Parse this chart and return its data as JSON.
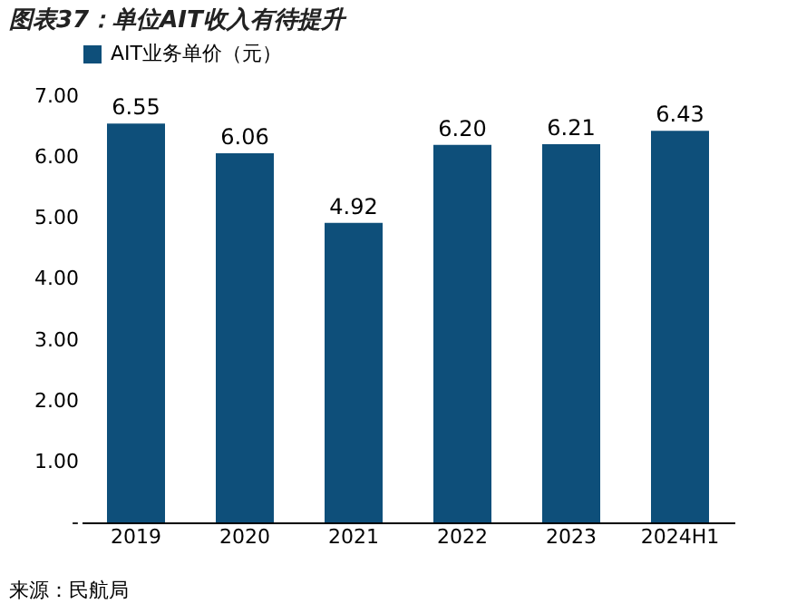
{
  "chart_data": {
    "type": "bar",
    "title": "图表37：单位AIT收入有待提升",
    "categories": [
      "2019",
      "2020",
      "2021",
      "2022",
      "2023",
      "2024H1"
    ],
    "series": [
      {
        "name": "AIT业务单价（元）",
        "color": "#0e4f7a",
        "values": [
          6.55,
          6.06,
          4.92,
          6.2,
          6.21,
          6.43
        ]
      }
    ],
    "value_labels": [
      "6.55",
      "6.06",
      "4.92",
      "6.20",
      "6.21",
      "6.43"
    ],
    "ylim": [
      0,
      7
    ],
    "yticks": [
      {
        "value": 0,
        "label": "-"
      },
      {
        "value": 1,
        "label": "1.00"
      },
      {
        "value": 2,
        "label": "2.00"
      },
      {
        "value": 3,
        "label": "3.00"
      },
      {
        "value": 4,
        "label": "4.00"
      },
      {
        "value": 5,
        "label": "5.00"
      },
      {
        "value": 6,
        "label": "6.00"
      },
      {
        "value": 7,
        "label": "7.00"
      }
    ],
    "legend": "top",
    "grid": false,
    "annotations": [
      "来源：民航局"
    ]
  }
}
